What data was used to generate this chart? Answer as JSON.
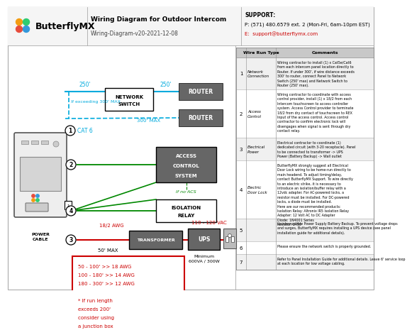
{
  "title": "Wiring Diagram for Outdoor Intercom",
  "subtitle": "Wiring-Diagram-v20-2021-12-08",
  "logo_text": "ButterflyMX",
  "support_label": "SUPPORT:",
  "support_phone": "P: (571) 480.6579 ext. 2 (Mon-Fri, 6am-10pm EST)",
  "support_email": "E:  support@butterflymx.com",
  "bg_color": "#ffffff",
  "cyan_color": "#00aadd",
  "red_color": "#cc0000",
  "green_color": "#008800",
  "wire_run_rows": [
    {
      "num": "1",
      "type": "Network\nConnection",
      "comment": "Wiring contractor to install (1) x Cat5e/Cat6\nfrom each intercom panel location directly to\nRouter. If under 300', if wire distance exceeds\n300' to router, connect Panel to Network\nSwitch (250' max) and Network Switch to\nRouter (250' max)."
    },
    {
      "num": "2",
      "type": "Access\nControl",
      "comment": "Wiring contractor to coordinate with access\ncontrol provider, install (1) x 18/2 from each\nIntercom touchscreen to access controller\nsystem. Access Control provider to terminate\n18/2 from dry contact of touchscreen to REX\nInput of the access control. Access control\ncontractor to confirm electronic lock will\ndisengages when signal is sent through dry\ncontact relay."
    },
    {
      "num": "3",
      "type": "Electrical\nPower",
      "comment": "Electrical contractor to coordinate (1)\ndedicated circuit (with 3-20 receptacle). Panel\nto be connected to transformer -> UPS\nPower (Battery Backup) -> Wall outlet"
    },
    {
      "num": "4",
      "type": "Electric\nDoor Lock",
      "comment": "ButterflyMX strongly suggest all Electrical\nDoor Lock wiring to be home-run directly to\nmain headend. To adjust timing/delay,\ncontact ButterflyMX Support. To wire directly\nto an electric strike, it is necessary to\nintroduce an isolation/buffer relay with a\n12vdc adapter. For AC-powered locks, a\nresistor must be installed. For DC-powered\nlocks, a diode must be installed.\nHere are our recommended products:\nIsolation Relay: Altronix IR5 Isolation Relay\nAdapter: 12 Volt AC to DC Adapter\nDiode: 1N4001 Series\nResistor: 1450"
    },
    {
      "num": "5",
      "type": "",
      "comment": "Uninterruptible Power Supply Battery Backup. To prevent voltage drops\nand surges, ButterflyMX requires installing a UPS device (see panel\ninstallation guide for additional details)."
    },
    {
      "num": "6",
      "type": "",
      "comment": "Please ensure the network switch is properly grounded."
    },
    {
      "num": "7",
      "type": "",
      "comment": "Refer to Panel Installation Guide for additional details. Leave 6' service loop\nat each location for low voltage cabling."
    }
  ]
}
